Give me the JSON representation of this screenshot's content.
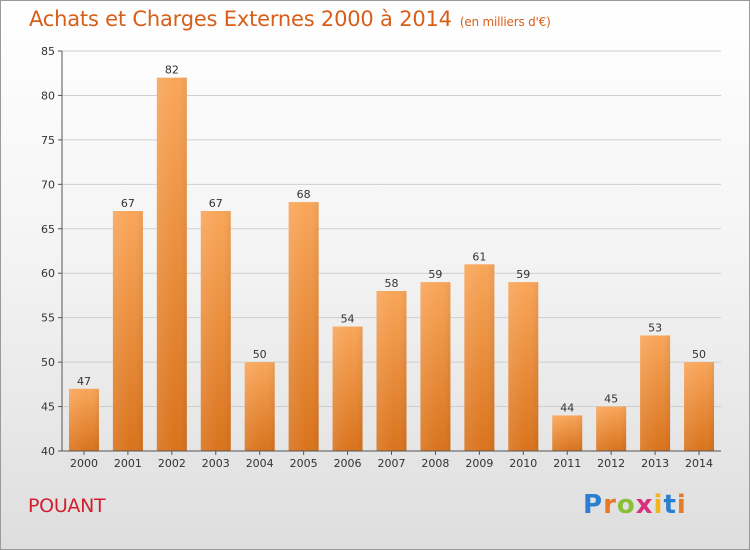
{
  "header": {
    "title": "Achats et Charges Externes 2000 à 2014",
    "unit": "(en milliers d'€)"
  },
  "footer": {
    "place": "POUANT",
    "logo_text": "Proxiti",
    "logo_colors": [
      "#2b7fd0",
      "#e8792a",
      "#8abf3a",
      "#d92f7c",
      "#f2b51f",
      "#2b7fd0",
      "#e8792a"
    ]
  },
  "chart_data": {
    "type": "bar",
    "title": "Achats et Charges Externes 2000 à 2014",
    "unit": "(en milliers d'€)",
    "categories": [
      "2000",
      "2001",
      "2002",
      "2003",
      "2004",
      "2005",
      "2006",
      "2007",
      "2008",
      "2009",
      "2010",
      "2011",
      "2012",
      "2013",
      "2014"
    ],
    "values": [
      47,
      67,
      82,
      67,
      50,
      68,
      54,
      58,
      59,
      61,
      59,
      44,
      45,
      53,
      50
    ],
    "ylim": [
      40,
      85
    ],
    "yticks": [
      40,
      45,
      50,
      55,
      60,
      65,
      70,
      75,
      80,
      85
    ],
    "grid": true,
    "bar_color_top": "#f9a65a",
    "bar_color_bottom": "#d9731c"
  }
}
